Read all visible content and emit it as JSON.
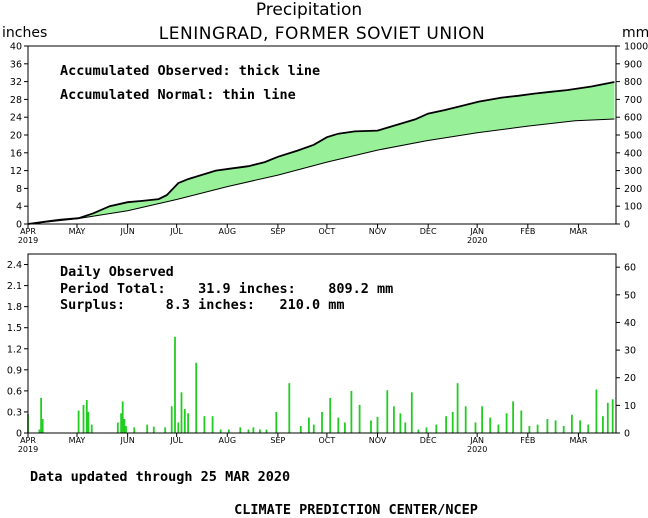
{
  "header": {
    "title": "Precipitation",
    "subtitle": "LENINGRAD, FORMER SOVIET UNION",
    "left_unit": "inches",
    "right_unit": "mm"
  },
  "footer": {
    "updated": "Data updated through 25 MAR 2020",
    "credit": "CLIMATE PREDICTION CENTER/NCEP"
  },
  "chart_data": [
    {
      "type": "area",
      "annotations": [
        "Accumulated Observed: thick line",
        "Accumulated Normal: thin line"
      ],
      "x_tick_labels": [
        "APR",
        "MAY",
        "JUN",
        "JUL",
        "AUG",
        "SEP",
        "OCT",
        "NOV",
        "DEC",
        "JAN",
        "FEB",
        "MAR"
      ],
      "x_year_labels": [
        {
          "month": "APR",
          "year": "2019"
        },
        {
          "month": "JAN",
          "year": "2020"
        }
      ],
      "y_left_ticks": [
        "0",
        "4",
        "8",
        "12",
        "16",
        "20",
        "24",
        "28",
        "32",
        "36",
        "40"
      ],
      "y_right_ticks": [
        "0",
        "100",
        "200",
        "300",
        "400",
        "500",
        "600",
        "700",
        "800",
        "900",
        "1000"
      ],
      "ylim_inches": [
        0,
        40
      ],
      "ylim_mm": [
        0,
        1000
      ],
      "fill_color": "#98f098",
      "series": [
        {
          "name": "Accumulated Observed",
          "x_day": [
            0,
            10,
            20,
            31,
            40,
            50,
            61,
            70,
            80,
            85,
            92,
            98,
            106,
            115,
            123,
            135,
            145,
            153,
            165,
            175,
            183,
            190,
            200,
            214,
            226,
            237,
            245,
            255,
            265,
            276,
            290,
            300,
            310,
            320,
            330,
            345,
            359
          ],
          "values": [
            0,
            0.5,
            1.0,
            1.3,
            2.4,
            4.0,
            4.9,
            5.2,
            5.6,
            6.5,
            9.2,
            10.1,
            11.0,
            12.0,
            12.4,
            13.0,
            13.9,
            15.1,
            16.5,
            17.8,
            19.5,
            20.3,
            20.8,
            21.0,
            22.3,
            23.5,
            24.8,
            25.6,
            26.5,
            27.5,
            28.4,
            28.8,
            29.3,
            29.7,
            30.1,
            30.9,
            31.9
          ],
          "line_width": "thick"
        },
        {
          "name": "Accumulated Normal",
          "x_day": [
            0,
            30,
            61,
            91,
            122,
            153,
            183,
            214,
            244,
            275,
            306,
            335,
            359
          ],
          "values": [
            0,
            1.2,
            3.0,
            5.5,
            8.4,
            11.0,
            13.9,
            16.6,
            18.7,
            20.5,
            22.0,
            23.2,
            23.6
          ],
          "line_width": "thin"
        }
      ]
    },
    {
      "type": "bar",
      "annotations": [
        "Daily Observed",
        "Period Total:    31.9 inches:    809.2 mm",
        "Surplus:     8.3 inches:   210.0 mm"
      ],
      "x_tick_labels": [
        "APR",
        "MAY",
        "JUN",
        "JUL",
        "AUG",
        "SEP",
        "OCT",
        "NOV",
        "DEC",
        "JAN",
        "FEB",
        "MAR"
      ],
      "x_year_labels": [
        {
          "month": "APR",
          "year": "2019"
        },
        {
          "month": "JAN",
          "year": "2020"
        }
      ],
      "y_left_ticks": [
        "0",
        "0.3",
        "0.6",
        "0.9",
        "1.2",
        "1.5",
        "1.8",
        "2.1",
        "2.4"
      ],
      "y_right_ticks": [
        "0",
        "10",
        "20",
        "30",
        "40",
        "50",
        "60"
      ],
      "ylim_inches": [
        0,
        2.55
      ],
      "ylim_mm": [
        0,
        64.77
      ],
      "bar_color": "#22cc22",
      "x_day": [
        0,
        7,
        8,
        9,
        31,
        34,
        36,
        37,
        39,
        55,
        57,
        58,
        59,
        60,
        65,
        73,
        77,
        84,
        88,
        90,
        92,
        94,
        96,
        98,
        103,
        108,
        113,
        118,
        123,
        130,
        135,
        138,
        142,
        146,
        152,
        160,
        167,
        172,
        175,
        180,
        185,
        190,
        194,
        198,
        203,
        210,
        214,
        220,
        224,
        228,
        231,
        235,
        239,
        244,
        250,
        256,
        260,
        263,
        268,
        274,
        278,
        283,
        288,
        293,
        297,
        302,
        307,
        312,
        318,
        323,
        328,
        333,
        338,
        343,
        348,
        352,
        355,
        358
      ],
      "values": [
        0.27,
        0.05,
        0.5,
        0.2,
        0.32,
        0.4,
        0.47,
        0.3,
        0.12,
        0.15,
        0.28,
        0.45,
        0.2,
        0.1,
        0.08,
        0.12,
        0.09,
        0.08,
        0.38,
        1.37,
        0.15,
        0.58,
        0.34,
        0.28,
        1.0,
        0.24,
        0.24,
        0.05,
        0.05,
        0.08,
        0.05,
        0.08,
        0.05,
        0.05,
        0.3,
        0.71,
        0.1,
        0.22,
        0.12,
        0.3,
        0.5,
        0.22,
        0.15,
        0.6,
        0.4,
        0.18,
        0.23,
        0.61,
        0.38,
        0.28,
        0.15,
        0.58,
        0.05,
        0.08,
        0.12,
        0.24,
        0.3,
        0.71,
        0.38,
        0.15,
        0.38,
        0.22,
        0.12,
        0.28,
        0.45,
        0.32,
        0.1,
        0.12,
        0.2,
        0.18,
        0.1,
        0.26,
        0.18,
        0.12,
        0.62,
        0.24,
        0.43,
        0.48
      ]
    }
  ]
}
